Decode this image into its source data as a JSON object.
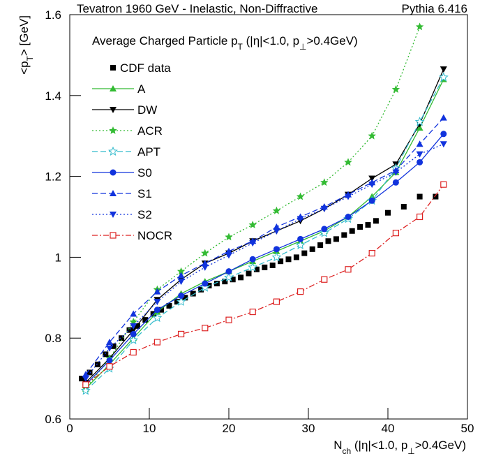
{
  "chart_data": {
    "type": "line",
    "title": "Tevatron 1960 GeV - Inelastic, Non-Diffractive",
    "subtitle": "Pythia 6.416",
    "legend_title": [
      "Average Charged Particle p",
      "T",
      " (|η|<1.0, p",
      "⊥",
      ">0.4GeV)"
    ],
    "y_label": [
      "<p",
      "T",
      "> [GeV]"
    ],
    "x_label": [
      "N",
      "ch",
      " (|η|<1.0, p",
      "⊥",
      ">0.4GeV)"
    ],
    "xlim": [
      0,
      50
    ],
    "xticks": [
      0,
      10,
      20,
      30,
      40,
      50
    ],
    "ylim": [
      0.6,
      1.6
    ],
    "yticks": [
      0.6,
      0.8,
      1,
      1.2,
      1.4,
      1.6
    ],
    "series": [
      {
        "name": "CDF data",
        "color": "#000000",
        "marker": "square",
        "line": "none",
        "x": [
          1.5,
          2.5,
          3.5,
          4.5,
          5.5,
          6.5,
          7.5,
          8.5,
          9.5,
          10.5,
          11.5,
          12.5,
          13.5,
          14.5,
          15.5,
          16.5,
          17.5,
          18.5,
          19.5,
          20.5,
          21.5,
          22.5,
          23.5,
          24.5,
          25.5,
          26.5,
          27.5,
          28.5,
          29.5,
          30.5,
          31.5,
          32.5,
          33.5,
          34.5,
          35.5,
          36.5,
          37.5,
          38.5,
          40,
          42,
          44,
          46
        ],
        "values": [
          0.7,
          0.715,
          0.735,
          0.76,
          0.78,
          0.8,
          0.82,
          0.83,
          0.845,
          0.86,
          0.87,
          0.88,
          0.89,
          0.9,
          0.91,
          0.92,
          0.93,
          0.935,
          0.94,
          0.945,
          0.95,
          0.96,
          0.97,
          0.975,
          0.98,
          0.99,
          0.995,
          1.0,
          1.01,
          1.02,
          1.03,
          1.04,
          1.045,
          1.055,
          1.065,
          1.075,
          1.08,
          1.09,
          1.11,
          1.125,
          1.15,
          1.15
        ]
      },
      {
        "name": "A",
        "color": "#33bb33",
        "marker": "triangle-up",
        "line": "solid",
        "x": [
          2,
          5,
          8,
          11,
          14,
          17,
          20,
          23,
          26,
          29,
          32,
          35,
          38,
          41,
          44,
          47
        ],
        "values": [
          0.675,
          0.735,
          0.8,
          0.865,
          0.91,
          0.94,
          0.965,
          0.99,
          1.015,
          1.04,
          1.065,
          1.1,
          1.15,
          1.21,
          1.32,
          1.44
        ]
      },
      {
        "name": "DW",
        "color": "#000000",
        "marker": "triangle-down",
        "line": "solid",
        "x": [
          2,
          5,
          8,
          11,
          14,
          17,
          20,
          23,
          26,
          29,
          32,
          35,
          38,
          41,
          44,
          47
        ],
        "values": [
          0.69,
          0.75,
          0.82,
          0.895,
          0.945,
          0.985,
          1.01,
          1.04,
          1.065,
          1.09,
          1.12,
          1.155,
          1.195,
          1.23,
          1.33,
          1.465
        ]
      },
      {
        "name": "ACR",
        "color": "#33bb33",
        "marker": "star",
        "line": "dotted",
        "x": [
          2,
          5,
          8,
          11,
          14,
          17,
          20,
          23,
          26,
          29,
          32,
          35,
          38,
          41,
          44,
          47
        ],
        "values": [
          0.675,
          0.75,
          0.84,
          0.92,
          0.965,
          1.01,
          1.05,
          1.08,
          1.115,
          1.15,
          1.185,
          1.235,
          1.3,
          1.415,
          1.57,
          null
        ]
      },
      {
        "name": "APT",
        "color": "#33bbcc",
        "marker": "open-star",
        "line": "dashed",
        "x": [
          2,
          5,
          8,
          11,
          14,
          17,
          20,
          23,
          26,
          29,
          32,
          35,
          38,
          41,
          44,
          47
        ],
        "values": [
          0.67,
          0.725,
          0.795,
          0.85,
          0.89,
          0.925,
          0.95,
          0.975,
          1.0,
          1.03,
          1.06,
          1.095,
          1.14,
          1.22,
          1.335,
          1.445
        ]
      },
      {
        "name": "S0",
        "color": "#1133dd",
        "marker": "circle",
        "line": "solid",
        "x": [
          2,
          5,
          8,
          11,
          14,
          17,
          20,
          23,
          26,
          29,
          32,
          35,
          38,
          41,
          44,
          47
        ],
        "values": [
          0.685,
          0.745,
          0.81,
          0.87,
          0.905,
          0.935,
          0.965,
          0.995,
          1.02,
          1.045,
          1.07,
          1.1,
          1.14,
          1.185,
          1.235,
          1.305
        ]
      },
      {
        "name": "S1",
        "color": "#1133dd",
        "marker": "triangle-up",
        "line": "dashed",
        "x": [
          2,
          5,
          8,
          11,
          14,
          17,
          20,
          23,
          26,
          29,
          32,
          35,
          38,
          41,
          44,
          47
        ],
        "values": [
          0.71,
          0.79,
          0.86,
          0.915,
          0.955,
          0.985,
          1.015,
          1.04,
          1.075,
          1.1,
          1.125,
          1.155,
          1.185,
          1.215,
          1.28,
          1.345
        ]
      },
      {
        "name": "S2",
        "color": "#1133dd",
        "marker": "triangle-down",
        "line": "dotted",
        "x": [
          2,
          5,
          8,
          11,
          14,
          17,
          20,
          23,
          26,
          29,
          32,
          35,
          38,
          41,
          44,
          47
        ],
        "values": [
          0.7,
          0.775,
          0.83,
          0.89,
          0.94,
          0.975,
          1.005,
          1.035,
          1.065,
          1.095,
          1.12,
          1.15,
          1.18,
          1.21,
          1.255,
          1.28
        ]
      },
      {
        "name": "NOCR",
        "color": "#dd2222",
        "marker": "open-square",
        "line": "dashdot",
        "x": [
          2,
          5,
          8,
          11,
          14,
          17,
          20,
          23,
          26,
          29,
          32,
          35,
          38,
          41,
          44,
          47
        ],
        "values": [
          0.685,
          0.73,
          0.765,
          0.79,
          0.81,
          0.825,
          0.845,
          0.865,
          0.89,
          0.915,
          0.945,
          0.97,
          1.01,
          1.06,
          1.1,
          1.18
        ]
      }
    ]
  }
}
